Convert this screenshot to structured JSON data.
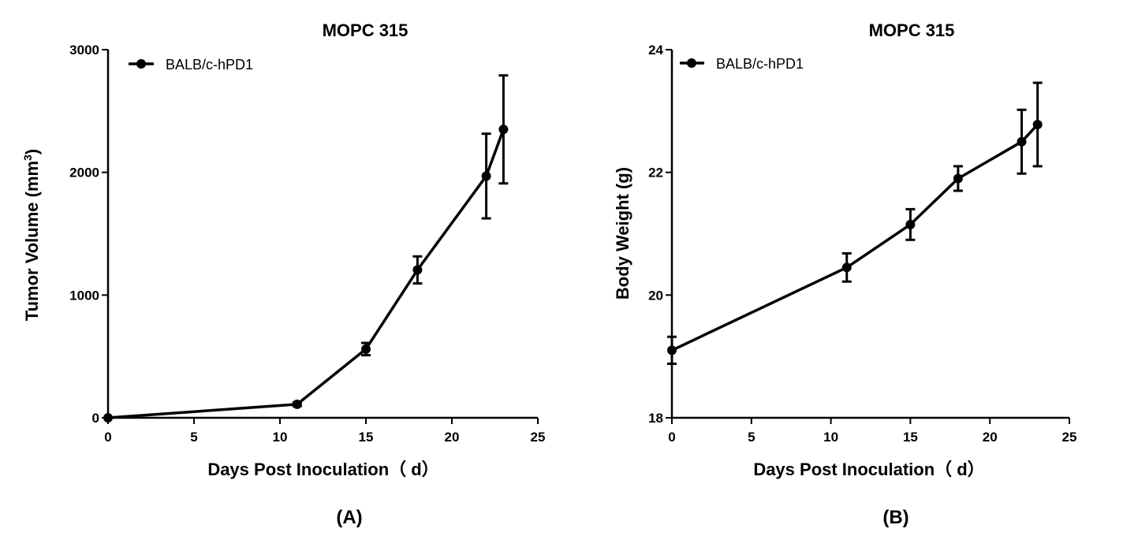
{
  "chart_data": [
    {
      "type": "line",
      "panel_label": "(A)",
      "title": "MOPC 315",
      "xlabel": "Days Post Inoculation（ d）",
      "ylabel_main": "Tumor Volume (mm",
      "ylabel_sup": "3",
      "ylabel_end": ")",
      "xlim": [
        0,
        25
      ],
      "ylim": [
        0,
        3000
      ],
      "xticks": [
        0,
        5,
        10,
        15,
        20,
        25
      ],
      "yticks": [
        0,
        1000,
        2000,
        3000
      ],
      "legend_position": "top-left",
      "grid": false,
      "series": [
        {
          "name": "BALB/c-hPD1",
          "x": [
            0,
            11,
            15,
            18,
            22,
            23
          ],
          "y": [
            0,
            110,
            560,
            1205,
            1970,
            2350
          ],
          "err": [
            0,
            15,
            50,
            110,
            345,
            440
          ]
        }
      ]
    },
    {
      "type": "line",
      "panel_label": "(B)",
      "title": "MOPC 315",
      "xlabel": "Days Post Inoculation（ d）",
      "ylabel_main": "Body Weight (g)",
      "ylabel_sup": "",
      "ylabel_end": "",
      "xlim": [
        0,
        25
      ],
      "ylim": [
        18,
        24
      ],
      "xticks": [
        0,
        5,
        10,
        15,
        20,
        25
      ],
      "yticks": [
        18,
        20,
        22,
        24
      ],
      "legend_position": "top-left",
      "grid": false,
      "series": [
        {
          "name": "BALB/c-hPD1",
          "x": [
            0,
            11,
            15,
            18,
            22,
            23
          ],
          "y": [
            19.1,
            20.45,
            21.15,
            21.9,
            22.5,
            22.78
          ],
          "err": [
            0.22,
            0.23,
            0.25,
            0.2,
            0.52,
            0.68
          ]
        }
      ]
    }
  ]
}
